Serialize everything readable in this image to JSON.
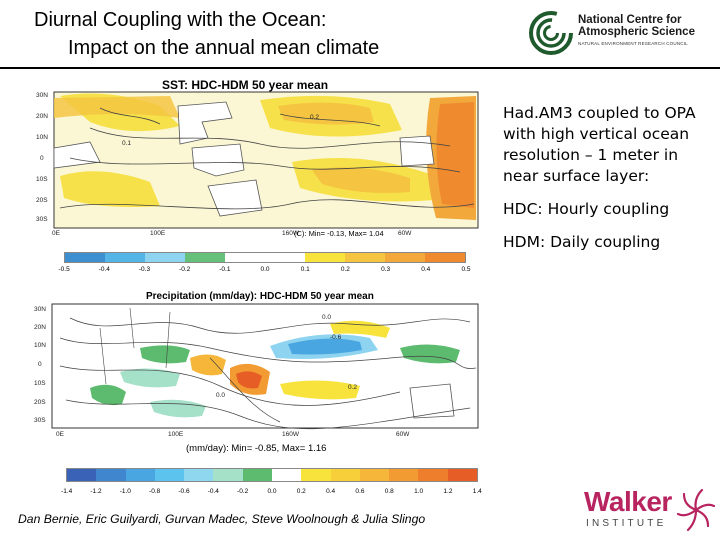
{
  "header": {
    "title_line1": "Diurnal Coupling with the Ocean:",
    "title_line2": "Impact on the annual mean climate"
  },
  "logo_ncas": {
    "name_line1": "National Centre for",
    "name_line2": "Atmospheric Science",
    "subtitle": "NATURAL ENVIRONMENT RESEARCH COUNCIL",
    "icon": "ncas-swirl-icon"
  },
  "sst_map": {
    "title": "SST: HDC-HDM   50 year mean",
    "lat_labels": [
      "30N",
      "20N",
      "10N",
      "0",
      "10S",
      "20S",
      "30S"
    ],
    "lon_labels": [
      "0E",
      "100E",
      "160W",
      "60W"
    ],
    "stats": "(C): Min= -0.13, Max= 1.04",
    "contour_labels": [
      "0.2",
      "0.1"
    ],
    "colorbar": {
      "labels": [
        "-0.5",
        "-0.4",
        "-0.3",
        "-0.2",
        "-0.1",
        "0.0",
        "0.1",
        "0.2",
        "0.3",
        "0.4",
        "0.5"
      ],
      "colors": [
        "#3e8fd0",
        "#54b4e6",
        "#8ed4f0",
        "#66c07a",
        "#ffffff",
        "#ffffff",
        "#f7e33c",
        "#f5c542",
        "#f3a83c",
        "#ef8a2f"
      ]
    }
  },
  "precip_map": {
    "title": "Precipitation (mm/day): HDC-HDM   50 year mean",
    "lat_labels": [
      "30N",
      "20N",
      "10N",
      "0",
      "10S",
      "20S",
      "30S"
    ],
    "lon_labels": [
      "0E",
      "100E",
      "160W",
      "60W"
    ],
    "stats": "(mm/day): Min= -0.85, Max= 1.16",
    "contour_labels": [
      "0.0",
      "-0.6",
      "0.0",
      "0.2"
    ],
    "colorbar": {
      "labels": [
        "-1.4",
        "-1.2",
        "-1.0",
        "-0.8",
        "-0.6",
        "-0.4",
        "-0.2",
        "0.0",
        "0.2",
        "0.4",
        "0.6",
        "0.8",
        "1.0",
        "1.2",
        "1.4"
      ],
      "colors": [
        "#3a63b8",
        "#3f86cf",
        "#49a6e0",
        "#5cc2ee",
        "#8fd7ee",
        "#a5e0c8",
        "#5dbb6f",
        "#ffffff",
        "#f7e33c",
        "#f6cf3a",
        "#f5b63a",
        "#f29b33",
        "#ee7e2c",
        "#e65d26"
      ]
    }
  },
  "description": {
    "p1": "Had.AM3 coupled to OPA with high vertical ocean resolution – 1 meter in near surface layer:",
    "p2": "HDC: Hourly coupling",
    "p3": "HDM: Daily coupling"
  },
  "footer": {
    "authors": "Dan Bernie, Eric Guilyardi, Gurvan Madec, Steve Woolnough & Julia Slingo"
  },
  "logo_walker": {
    "name": "Walker",
    "subtitle": "INSTITUTE",
    "icon": "walker-flower-icon"
  }
}
